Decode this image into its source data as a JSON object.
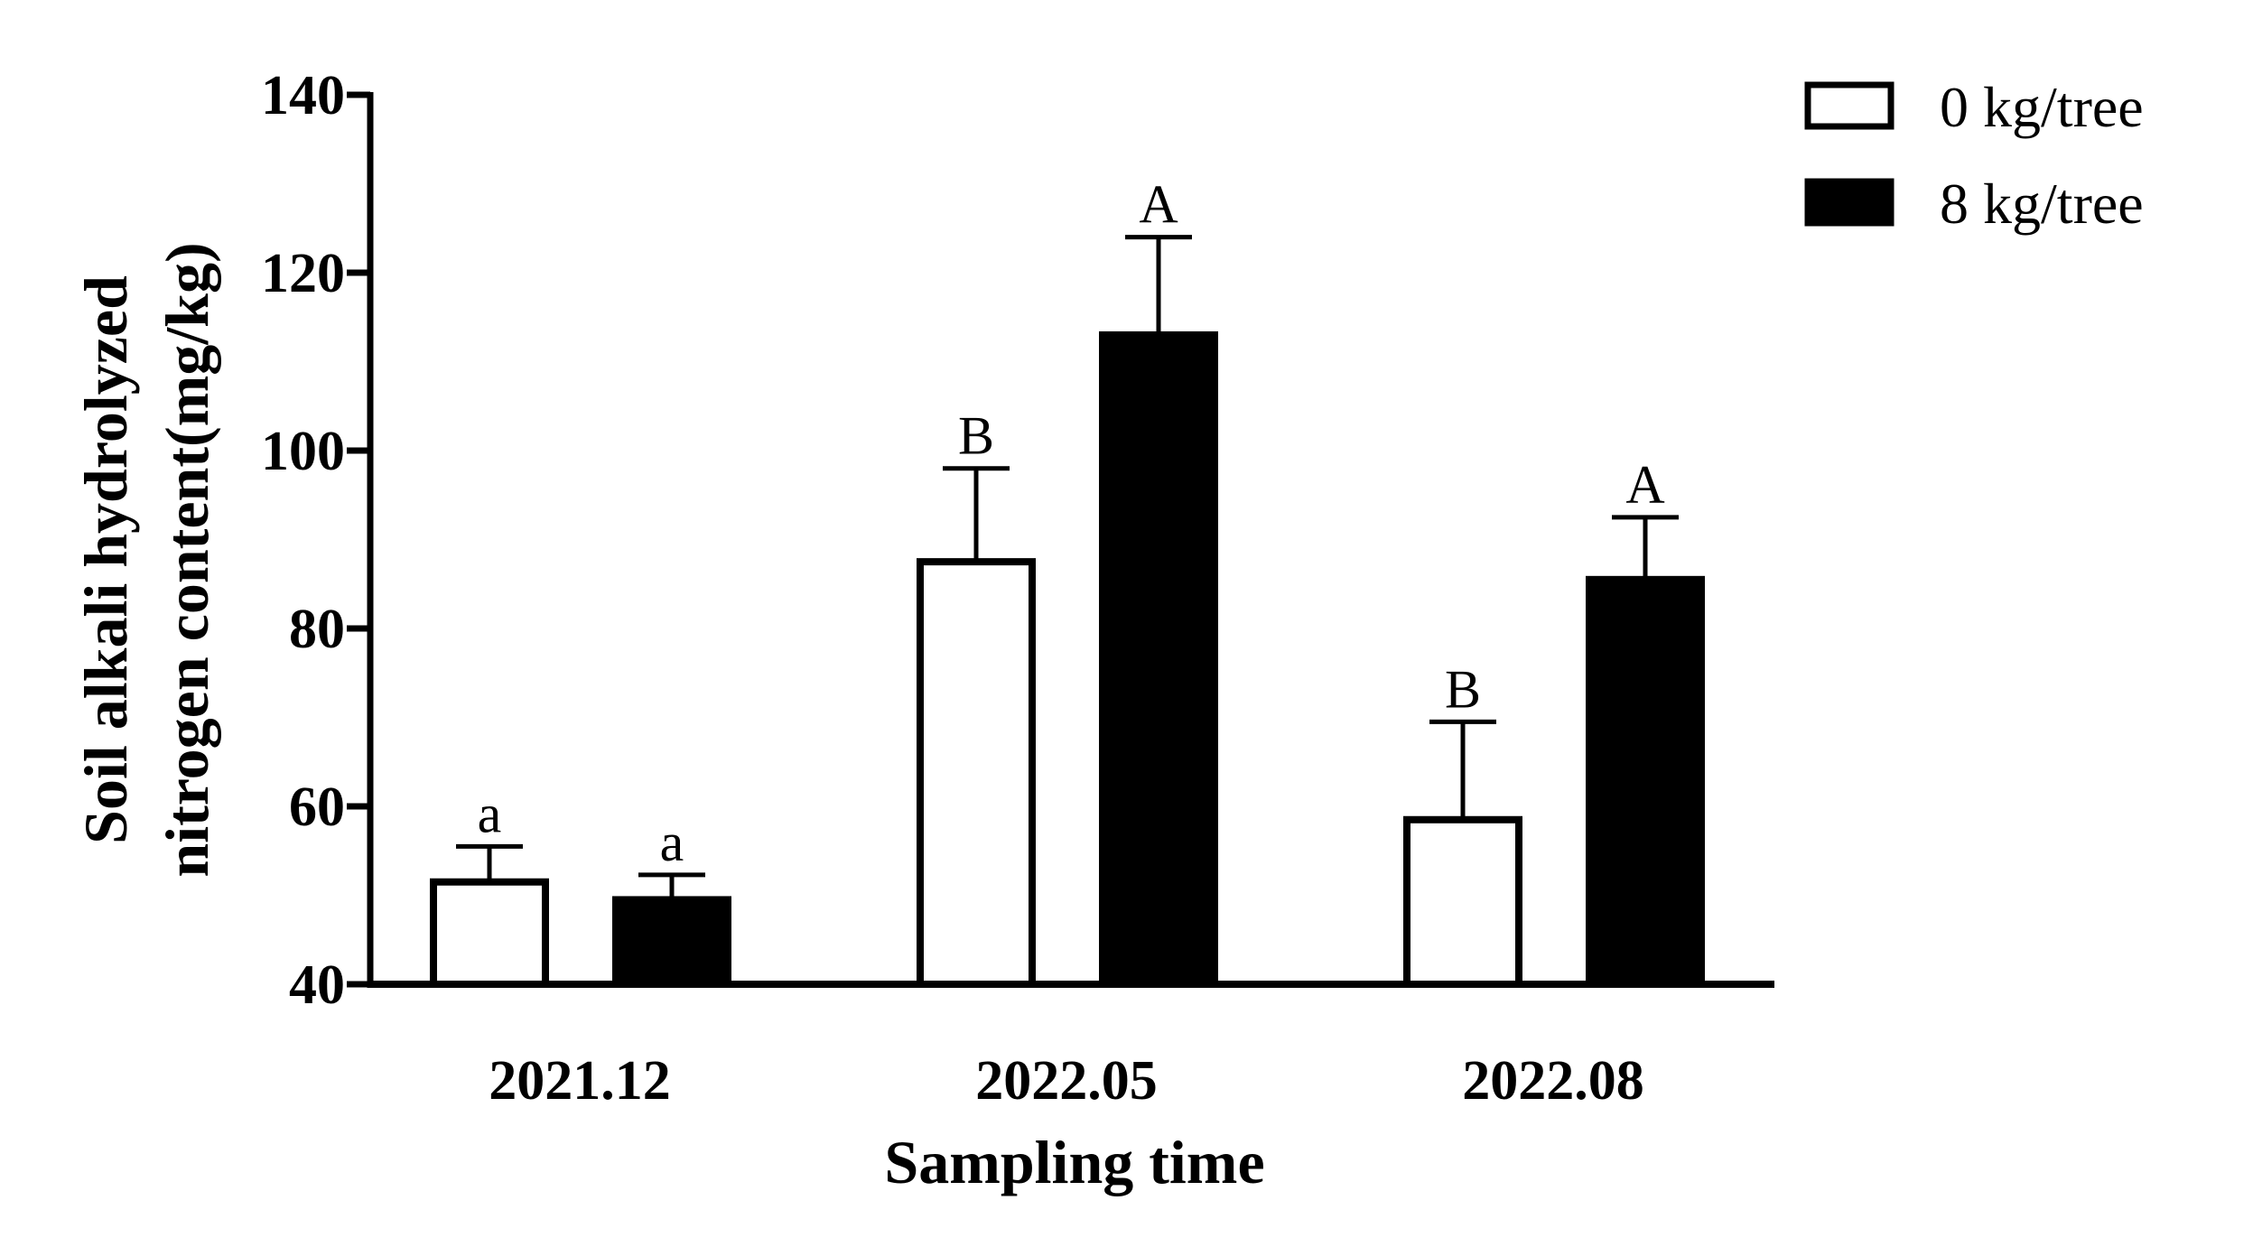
{
  "chart_data": {
    "type": "bar",
    "title": "",
    "xlabel": "Sampling time",
    "ylabel": [
      "Soil alkali hydrolyzed",
      "nitrogen content(mg/kg)"
    ],
    "ylim": [
      40,
      140
    ],
    "yticks": [
      40,
      60,
      80,
      100,
      120,
      140
    ],
    "categories": [
      "2021.12",
      "2022.05",
      "2022.08"
    ],
    "series": [
      {
        "name": "0 kg/tree",
        "values": [
          51.5,
          87.5,
          58.5
        ],
        "errors": [
          4.0,
          10.5,
          11.0
        ],
        "labels": [
          "a",
          "B",
          "B"
        ],
        "fill": "#ffffff"
      },
      {
        "name": "8 kg/tree",
        "values": [
          49.5,
          113.0,
          85.5
        ],
        "errors": [
          2.8,
          11.0,
          7.0
        ],
        "labels": [
          "a",
          "A",
          "A"
        ],
        "fill": "#000000"
      }
    ],
    "legend_position": "top-right",
    "grid": false,
    "colors": {
      "axis": "#000000",
      "bar_stroke": "#000000"
    }
  }
}
